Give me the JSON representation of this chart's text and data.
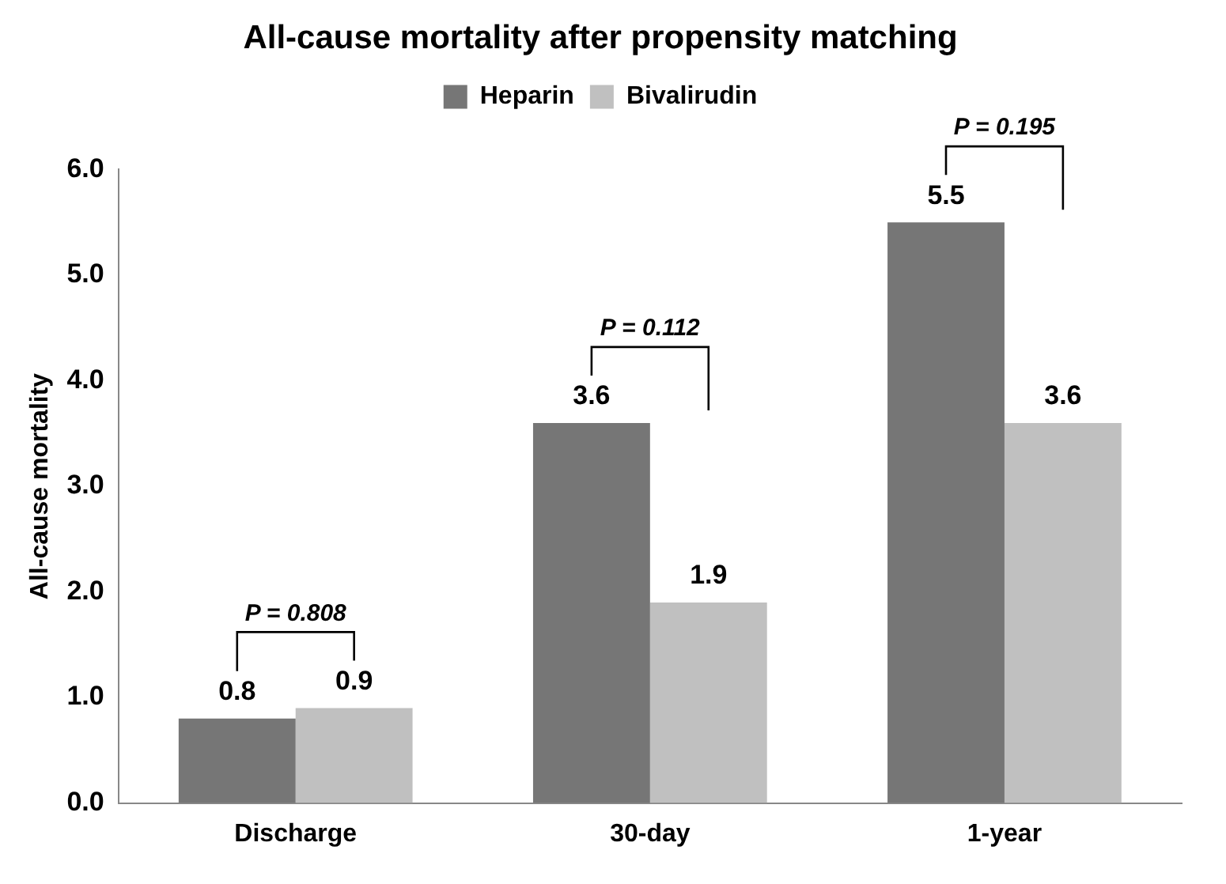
{
  "chart_data": {
    "type": "bar",
    "title": "All-cause mortality after propensity matching",
    "ylabel": "All-cause mortality",
    "categories": [
      "Discharge",
      "30-day",
      "1-year"
    ],
    "series": [
      {
        "name": "Heparin",
        "color": "#767676",
        "values": [
          0.8,
          3.6,
          5.5
        ]
      },
      {
        "name": "Bivalirudin",
        "color": "#c0c0c0",
        "values": [
          0.9,
          1.9,
          3.6
        ]
      }
    ],
    "ylim": [
      0,
      6
    ],
    "yticks": [
      {
        "value": 0,
        "label": "0.0"
      },
      {
        "value": 1,
        "label": "1.0"
      },
      {
        "value": 2,
        "label": "2.0"
      },
      {
        "value": 3,
        "label": "3.0"
      },
      {
        "value": 4,
        "label": "4.0"
      },
      {
        "value": 5,
        "label": "5.0"
      },
      {
        "value": 6,
        "label": "6.0"
      }
    ],
    "grid": false,
    "legend": "top",
    "data_labels": true,
    "annotations": [
      "P = 0.808",
      "P = 0.112",
      "P = 0.195"
    ]
  }
}
